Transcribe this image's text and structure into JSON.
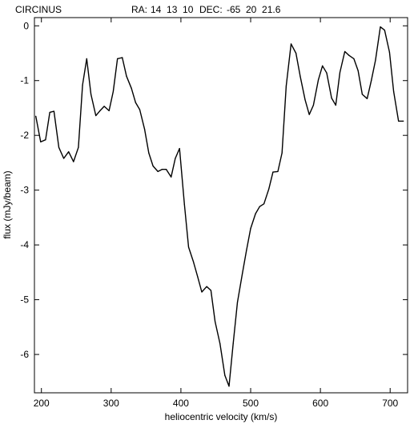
{
  "header": {
    "object": "CIRCINUS",
    "ra_label": "RA:",
    "ra_value": "14  13  10",
    "dec_label": "DEC:",
    "dec_value": "-65  20  21.6"
  },
  "chart_data": {
    "type": "line",
    "title": "",
    "xlabel": "heliocentric velocity (km/s)",
    "ylabel": "flux (mJy/beam)",
    "xlim": [
      190,
      725
    ],
    "ylim": [
      -6.7,
      0.15
    ],
    "xticks": [
      200,
      300,
      400,
      500,
      600,
      700
    ],
    "yticks": [
      0,
      -1,
      -2,
      -3,
      -4,
      -5,
      -6
    ],
    "grid": false,
    "series": [
      {
        "color": "#000000",
        "x": [
          192,
          199,
          206,
          212,
          218,
          225,
          232,
          239,
          246,
          253,
          259,
          265,
          271,
          278,
          284,
          290,
          297,
          303,
          309,
          316,
          322,
          329,
          335,
          341,
          348,
          354,
          360,
          367,
          373,
          379,
          386,
          392,
          398,
          405,
          411,
          418,
          424,
          430,
          437,
          443,
          449,
          456,
          463,
          469,
          475,
          481,
          488,
          494,
          500,
          507,
          513,
          519,
          526,
          532,
          539,
          545,
          551,
          558,
          565,
          571,
          578,
          584,
          590,
          597,
          603,
          609,
          616,
          622,
          628,
          635,
          641,
          648,
          654,
          660,
          667,
          673,
          679,
          686,
          692,
          699,
          705,
          712,
          719
        ],
        "y": [
          -1.65,
          -2.12,
          -2.08,
          -1.58,
          -1.56,
          -2.22,
          -2.42,
          -2.3,
          -2.48,
          -2.22,
          -1.08,
          -0.6,
          -1.25,
          -1.64,
          -1.55,
          -1.47,
          -1.55,
          -1.2,
          -0.6,
          -0.58,
          -0.92,
          -1.14,
          -1.4,
          -1.53,
          -1.89,
          -2.32,
          -2.56,
          -2.66,
          -2.62,
          -2.62,
          -2.76,
          -2.42,
          -2.24,
          -3.26,
          -4.04,
          -4.31,
          -4.58,
          -4.86,
          -4.76,
          -4.83,
          -5.4,
          -5.8,
          -6.38,
          -6.58,
          -5.8,
          -5.05,
          -4.53,
          -4.1,
          -3.7,
          -3.43,
          -3.3,
          -3.25,
          -2.98,
          -2.67,
          -2.66,
          -2.32,
          -1.1,
          -0.33,
          -0.5,
          -0.92,
          -1.35,
          -1.62,
          -1.45,
          -0.99,
          -0.73,
          -0.86,
          -1.32,
          -1.45,
          -0.85,
          -0.47,
          -0.54,
          -0.6,
          -0.82,
          -1.25,
          -1.33,
          -1.0,
          -0.63,
          -0.02,
          -0.08,
          -0.48,
          -1.2,
          -1.74,
          -1.74
        ]
      }
    ]
  }
}
